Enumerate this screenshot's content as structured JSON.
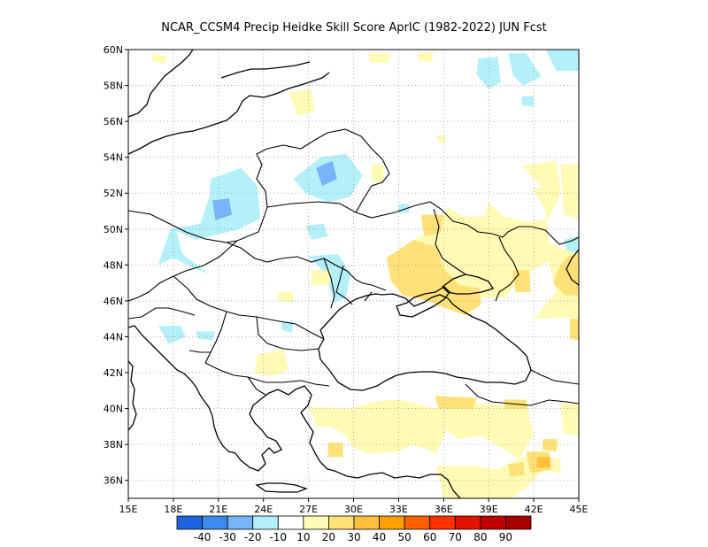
{
  "title": "NCAR_CCSM4 Precip Heidke Skill Score AprIC (1982-2022) JUN Fcst",
  "lon_ticks": [
    "15E",
    "18E",
    "21E",
    "24E",
    "27E",
    "30E",
    "33E",
    "36E",
    "39E",
    "42E",
    "45E"
  ],
  "lat_ticks": [
    "36N",
    "38N",
    "40N",
    "42N",
    "44N",
    "46N",
    "48N",
    "50N",
    "52N",
    "54N",
    "56N",
    "58N",
    "60N"
  ],
  "lon_range": [
    15,
    45
  ],
  "lat_range": [
    35,
    60
  ],
  "colorbar": {
    "colors": [
      "#1e64dc",
      "#3c8cf0",
      "#78b4f8",
      "#b4f0fa",
      "#ffffff",
      "#fffab4",
      "#ffe178",
      "#ffc03c",
      "#ffa000",
      "#ff6000",
      "#ff3200",
      "#e11400",
      "#c00000",
      "#a50000"
    ],
    "labels": [
      "-40",
      "-30",
      "-20",
      "-10",
      "10",
      "20",
      "30",
      "40",
      "50",
      "60",
      "70",
      "80",
      "90"
    ]
  },
  "legend_colors": {
    "c-20": "#78b4f8",
    "c-10": "#b4f0fa",
    "c10": "#fffab4",
    "c20": "#ffe178",
    "c30": "#ffc03c",
    "c40": "#ffa000"
  },
  "shading": [
    {
      "class": "c-10",
      "poly": [
        [
          20.5,
          52.8
        ],
        [
          22.5,
          53.4
        ],
        [
          23.6,
          52.4
        ],
        [
          23.8,
          50.6
        ],
        [
          22.4,
          50.0
        ],
        [
          19.5,
          49.4
        ],
        [
          18.2,
          49.9
        ],
        [
          18.6,
          48.6
        ],
        [
          20.4,
          47.5
        ],
        [
          19.4,
          47.8
        ],
        [
          18.0,
          48.4
        ],
        [
          17.0,
          48.0
        ],
        [
          17.8,
          50.0
        ],
        [
          19.8,
          50.3
        ],
        [
          20.4,
          51.8
        ]
      ]
    },
    {
      "class": "c-10",
      "poly": [
        [
          26.0,
          52.8
        ],
        [
          27.8,
          54.0
        ],
        [
          29.5,
          54.2
        ],
        [
          30.6,
          53.0
        ],
        [
          29.8,
          51.8
        ],
        [
          28.3,
          51.5
        ],
        [
          26.8,
          52.0
        ]
      ]
    },
    {
      "class": "c-10",
      "poly": [
        [
          26.8,
          50.2
        ],
        [
          28.0,
          50.3
        ],
        [
          28.3,
          49.6
        ],
        [
          27.2,
          49.4
        ]
      ]
    },
    {
      "class": "c-10",
      "poly": [
        [
          27.0,
          48.5
        ],
        [
          29.0,
          48.6
        ],
        [
          29.8,
          47.5
        ],
        [
          29.5,
          46.2
        ],
        [
          28.7,
          45.9
        ],
        [
          28.3,
          47.0
        ],
        [
          27.8,
          47.8
        ]
      ]
    },
    {
      "class": "c-10",
      "poly": [
        [
          17.0,
          44.6
        ],
        [
          18.5,
          44.6
        ],
        [
          18.8,
          44.0
        ],
        [
          17.7,
          43.6
        ]
      ]
    },
    {
      "class": "c-10",
      "poly": [
        [
          19.5,
          44.3
        ],
        [
          20.8,
          44.3
        ],
        [
          20.6,
          43.8
        ],
        [
          19.6,
          43.9
        ]
      ]
    },
    {
      "class": "c-10",
      "poly": [
        [
          25.2,
          44.8
        ],
        [
          26.0,
          44.9
        ],
        [
          25.9,
          44.2
        ],
        [
          25.2,
          44.4
        ]
      ]
    },
    {
      "class": "c-10",
      "poly": [
        [
          38.3,
          59.5
        ],
        [
          39.6,
          59.6
        ],
        [
          39.8,
          58.2
        ],
        [
          39.0,
          57.8
        ],
        [
          38.2,
          58.6
        ]
      ]
    },
    {
      "class": "c-10",
      "poly": [
        [
          40.3,
          59.8
        ],
        [
          41.5,
          59.8
        ],
        [
          42.5,
          58.5
        ],
        [
          41.3,
          58.0
        ],
        [
          40.6,
          58.6
        ]
      ]
    },
    {
      "class": "c-10",
      "poly": [
        [
          42.8,
          60.0
        ],
        [
          45.0,
          60.0
        ],
        [
          45.0,
          58.8
        ],
        [
          43.5,
          58.8
        ]
      ]
    },
    {
      "class": "c-10",
      "poly": [
        [
          41.2,
          57.4
        ],
        [
          42.0,
          57.4
        ],
        [
          42.0,
          56.8
        ],
        [
          41.2,
          56.9
        ]
      ]
    },
    {
      "class": "c-10",
      "poly": [
        [
          33.0,
          51.4
        ],
        [
          33.7,
          51.4
        ],
        [
          33.7,
          50.9
        ],
        [
          33.0,
          50.9
        ]
      ]
    },
    {
      "class": "c-10",
      "poly": [
        [
          44.0,
          49.4
        ],
        [
          45.0,
          49.6
        ],
        [
          45.0,
          48.6
        ],
        [
          44.2,
          48.7
        ]
      ]
    },
    {
      "class": "c-20",
      "poly": [
        [
          20.6,
          51.6
        ],
        [
          21.7,
          51.7
        ],
        [
          21.9,
          50.8
        ],
        [
          20.8,
          50.5
        ]
      ]
    },
    {
      "class": "c-20",
      "poly": [
        [
          27.5,
          53.4
        ],
        [
          28.6,
          53.8
        ],
        [
          28.9,
          52.8
        ],
        [
          27.9,
          52.4
        ]
      ]
    },
    {
      "class": "c10",
      "poly": [
        [
          16.6,
          59.8
        ],
        [
          17.6,
          59.6
        ],
        [
          17.4,
          59.2
        ],
        [
          16.6,
          59.4
        ]
      ]
    },
    {
      "class": "c10",
      "poly": [
        [
          25.7,
          57.6
        ],
        [
          27.2,
          57.8
        ],
        [
          27.4,
          56.6
        ],
        [
          26.3,
          56.3
        ]
      ]
    },
    {
      "class": "c10",
      "poly": [
        [
          31.0,
          59.8
        ],
        [
          32.5,
          59.8
        ],
        [
          32.3,
          59.3
        ],
        [
          31.1,
          59.3
        ]
      ]
    },
    {
      "class": "c10",
      "poly": [
        [
          34.3,
          59.8
        ],
        [
          35.3,
          59.9
        ],
        [
          35.2,
          59.3
        ],
        [
          34.3,
          59.4
        ]
      ]
    },
    {
      "class": "c10",
      "poly": [
        [
          35.6,
          55.2
        ],
        [
          36.1,
          55.2
        ],
        [
          36.1,
          54.8
        ],
        [
          35.6,
          54.9
        ]
      ]
    },
    {
      "class": "c10",
      "poly": [
        [
          43.8,
          53.6
        ],
        [
          45.0,
          53.6
        ],
        [
          45.0,
          50.6
        ],
        [
          44.0,
          50.8
        ]
      ]
    },
    {
      "class": "c10",
      "poly": [
        [
          41.2,
          53.5
        ],
        [
          43.5,
          53.8
        ],
        [
          43.8,
          52.0
        ],
        [
          43.0,
          50.6
        ],
        [
          41.5,
          50.4
        ],
        [
          40.0,
          50.7
        ],
        [
          39.0,
          51.5
        ],
        [
          38.7,
          50.7
        ],
        [
          37.3,
          50.7
        ],
        [
          36.3,
          51.2
        ],
        [
          35.5,
          50.0
        ],
        [
          34.2,
          49.5
        ],
        [
          33.5,
          49.0
        ],
        [
          32.3,
          48.2
        ],
        [
          32.5,
          47.0
        ],
        [
          33.5,
          46.5
        ],
        [
          35.0,
          46.0
        ],
        [
          37.0,
          46.4
        ],
        [
          38.6,
          46.2
        ],
        [
          40.1,
          46.2
        ],
        [
          41.3,
          47.5
        ],
        [
          43.0,
          48.2
        ],
        [
          43.5,
          46.5
        ],
        [
          42.0,
          45.0
        ],
        [
          44.5,
          45.1
        ],
        [
          45.0,
          44.5
        ],
        [
          45.0,
          47.0
        ],
        [
          44.3,
          47.5
        ],
        [
          45.0,
          48.6
        ],
        [
          43.0,
          49.2
        ],
        [
          42.8,
          51.0
        ],
        [
          41.9,
          52.3
        ],
        [
          42.6,
          52.3
        ]
      ]
    },
    {
      "class": "c10",
      "poly": [
        [
          25.0,
          46.5
        ],
        [
          26.0,
          46.5
        ],
        [
          26.0,
          45.9
        ],
        [
          25.0,
          46.0
        ]
      ]
    },
    {
      "class": "c10",
      "poly": [
        [
          27.2,
          47.7
        ],
        [
          28.5,
          47.7
        ],
        [
          28.4,
          46.9
        ],
        [
          27.2,
          46.9
        ]
      ]
    },
    {
      "class": "c10",
      "poly": [
        [
          23.6,
          43.0
        ],
        [
          25.3,
          43.3
        ],
        [
          25.7,
          42.2
        ],
        [
          24.5,
          41.8
        ],
        [
          23.4,
          42.0
        ]
      ]
    },
    {
      "class": "c10",
      "poly": [
        [
          27.0,
          40.1
        ],
        [
          29.8,
          40.0
        ],
        [
          31.5,
          40.4
        ],
        [
          33.0,
          40.5
        ],
        [
          35.5,
          40.0
        ],
        [
          37.0,
          40.3
        ],
        [
          40.0,
          40.2
        ],
        [
          41.5,
          40.4
        ],
        [
          42.0,
          38.5
        ],
        [
          41.0,
          37.2
        ],
        [
          40.5,
          37.5
        ],
        [
          38.5,
          38.5
        ],
        [
          37.0,
          38.3
        ],
        [
          36.2,
          38.8
        ],
        [
          35.5,
          37.5
        ],
        [
          34.0,
          38.0
        ],
        [
          33.0,
          37.6
        ],
        [
          31.0,
          37.5
        ],
        [
          30.0,
          37.8
        ],
        [
          29.5,
          38.5
        ],
        [
          28.5,
          39.0
        ],
        [
          27.5,
          39.0
        ],
        [
          27.3,
          39.6
        ]
      ]
    },
    {
      "class": "c10",
      "poly": [
        [
          35.5,
          36.8
        ],
        [
          38.0,
          36.8
        ],
        [
          39.5,
          36.6
        ],
        [
          40.5,
          37.0
        ],
        [
          42.0,
          37.5
        ],
        [
          42.5,
          36.5
        ],
        [
          41.5,
          35.6
        ],
        [
          40.5,
          35.0
        ],
        [
          36.0,
          35.0
        ]
      ]
    },
    {
      "class": "c10",
      "poly": [
        [
          42.8,
          37.3
        ],
        [
          43.8,
          37.2
        ],
        [
          43.8,
          36.4
        ],
        [
          42.8,
          36.6
        ]
      ]
    },
    {
      "class": "c10",
      "poly": [
        [
          43.8,
          40.3
        ],
        [
          45.0,
          40.3
        ],
        [
          45.0,
          38.5
        ],
        [
          44.0,
          38.6
        ]
      ]
    },
    {
      "class": "c10",
      "poly": [
        [
          31.2,
          53.6
        ],
        [
          32.0,
          53.6
        ],
        [
          32.0,
          52.6
        ],
        [
          31.2,
          52.6
        ]
      ]
    },
    {
      "class": "c20",
      "poly": [
        [
          32.2,
          48.4
        ],
        [
          34.0,
          49.4
        ],
        [
          35.5,
          49.0
        ],
        [
          36.0,
          47.8
        ],
        [
          37.0,
          46.9
        ],
        [
          38.4,
          46.7
        ],
        [
          38.5,
          45.8
        ],
        [
          37.4,
          45.2
        ],
        [
          35.8,
          45.7
        ],
        [
          35.0,
          46.0
        ],
        [
          33.3,
          46.3
        ],
        [
          32.5,
          47.1
        ]
      ]
    },
    {
      "class": "c20",
      "poly": [
        [
          34.5,
          50.8
        ],
        [
          36.0,
          50.8
        ],
        [
          35.8,
          49.8
        ],
        [
          34.7,
          49.6
        ]
      ]
    },
    {
      "class": "c20",
      "poly": [
        [
          40.6,
          47.7
        ],
        [
          41.7,
          47.7
        ],
        [
          41.8,
          46.5
        ],
        [
          40.8,
          46.5
        ]
      ]
    },
    {
      "class": "c20",
      "poly": [
        [
          44.3,
          48.5
        ],
        [
          45.0,
          48.6
        ],
        [
          45.0,
          46.3
        ],
        [
          44.1,
          46.3
        ],
        [
          43.3,
          47.0
        ],
        [
          43.7,
          47.9
        ]
      ]
    },
    {
      "class": "c20",
      "poly": [
        [
          44.4,
          45.0
        ],
        [
          45.0,
          45.0
        ],
        [
          45.0,
          43.8
        ],
        [
          44.4,
          43.9
        ]
      ]
    },
    {
      "class": "c20",
      "poly": [
        [
          35.4,
          40.7
        ],
        [
          38.2,
          40.6
        ],
        [
          38.0,
          40.0
        ],
        [
          35.7,
          40.0
        ]
      ]
    },
    {
      "class": "c20",
      "poly": [
        [
          40.0,
          40.5
        ],
        [
          41.5,
          40.5
        ],
        [
          41.6,
          40.0
        ],
        [
          40.1,
          40.0
        ]
      ]
    },
    {
      "class": "c20",
      "poly": [
        [
          28.3,
          38.1
        ],
        [
          29.3,
          38.1
        ],
        [
          29.3,
          37.3
        ],
        [
          28.3,
          37.3
        ]
      ]
    },
    {
      "class": "c20",
      "poly": [
        [
          40.3,
          36.9
        ],
        [
          41.3,
          37.0
        ],
        [
          41.4,
          36.3
        ],
        [
          40.4,
          36.2
        ]
      ]
    },
    {
      "class": "c20",
      "poly": [
        [
          41.5,
          37.6
        ],
        [
          43.0,
          37.6
        ],
        [
          43.2,
          36.6
        ],
        [
          41.8,
          36.4
        ]
      ]
    },
    {
      "class": "c20",
      "poly": [
        [
          42.6,
          38.3
        ],
        [
          43.6,
          38.3
        ],
        [
          43.5,
          37.6
        ],
        [
          42.6,
          37.7
        ]
      ]
    },
    {
      "class": "c30",
      "poly": [
        [
          42.2,
          37.3
        ],
        [
          43.1,
          37.3
        ],
        [
          43.1,
          36.7
        ],
        [
          42.2,
          36.7
        ]
      ]
    }
  ]
}
